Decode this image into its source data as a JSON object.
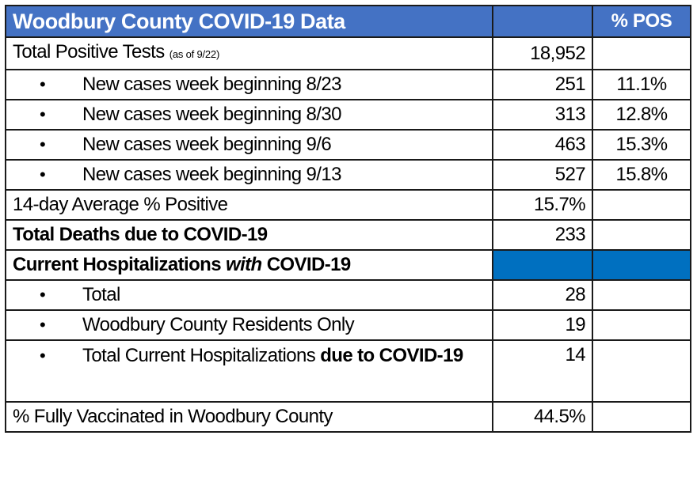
{
  "header": {
    "title": "Woodbury County COVID-19 Data",
    "col2": "",
    "col3": "% POS"
  },
  "colors": {
    "header_bg": "#4472C4",
    "section_fill": "#0070C0",
    "border": "#1a1a1a"
  },
  "rows": {
    "total_positive": {
      "label": "Total Positive Tests ",
      "note": "(as of 9/22)",
      "value": "18,952",
      "pos": ""
    },
    "weeks": [
      {
        "bullet": "•",
        "label": "New cases week beginning 8/23",
        "value": "251",
        "pos": "11.1%"
      },
      {
        "bullet": "•",
        "label": "New cases week beginning 8/30",
        "value": "313",
        "pos": "12.8%"
      },
      {
        "bullet": "•",
        "label": "New cases week beginning 9/6",
        "value": "463",
        "pos": "15.3%"
      },
      {
        "bullet": "•",
        "label": "New cases week beginning 9/13",
        "value": "527",
        "pos": "15.8%"
      }
    ],
    "avg_positive": {
      "label": "14-day Average % Positive",
      "value": "15.7%"
    },
    "deaths": {
      "label": "Total Deaths due to COVID-19",
      "value": "233"
    },
    "hospitalizations_header": {
      "label_a": "Current Hospitalizations ",
      "label_b": "with",
      "label_c": " COVID-19"
    },
    "hosp_total": {
      "bullet": "•",
      "label": "Total",
      "value": "28"
    },
    "hosp_residents": {
      "bullet": "•",
      "label": "Woodbury County Residents Only",
      "value": "19"
    },
    "hosp_due": {
      "bullet": "•",
      "label_a": "Total Current Hospitalizations ",
      "label_b": "due to COVID-19",
      "value": "14"
    },
    "vaccinated": {
      "label": "% Fully Vaccinated in Woodbury County",
      "value": "44.5%"
    }
  }
}
